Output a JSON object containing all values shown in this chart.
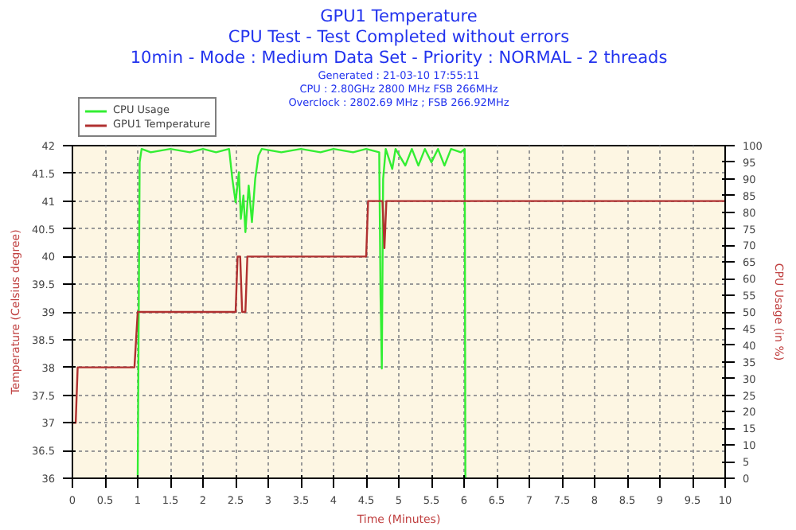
{
  "chart_data": {
    "type": "line",
    "title": "GPU1 Temperature",
    "subtitle": "CPU Test - Test Completed without errors\n10min - Mode : Medium Data Set - Priority : NORMAL - 2 threads",
    "annotations": [
      "Generated : 21-03-10 17:55:11",
      "CPU : 2.80GHz 2800 MHz FSB 266MHz",
      "Overclock : 2802.69 MHz ; FSB 266.92MHz"
    ],
    "xlabel": "Time (Minutes)",
    "ylabel": "Temperature (Celsius degree)",
    "y2label": "CPU Usage (in %)",
    "xlim": [
      0,
      10
    ],
    "xticks": [
      0,
      0.5,
      1,
      1.5,
      2,
      2.5,
      3,
      3.5,
      4,
      4.5,
      5,
      5.5,
      6,
      6.5,
      7,
      7.5,
      8,
      8.5,
      9,
      9.5,
      10
    ],
    "ylim": [
      36,
      42
    ],
    "yticks": [
      36,
      36.5,
      37,
      37.5,
      38,
      38.5,
      39,
      39.5,
      40,
      40.5,
      41,
      41.5,
      42
    ],
    "y2lim": [
      0,
      100
    ],
    "y2ticks": [
      0,
      5,
      10,
      15,
      20,
      25,
      30,
      35,
      40,
      45,
      50,
      55,
      60,
      65,
      70,
      75,
      80,
      85,
      90,
      95,
      100
    ],
    "grid": true,
    "legend": "top left",
    "line_style": "solid",
    "series": [
      {
        "name": "CPU Usage",
        "color": "#33ee33",
        "axis": "y2",
        "x": [
          1.0,
          1.03,
          1.06,
          1.2,
          1.5,
          1.8,
          2.0,
          2.2,
          2.4,
          2.45,
          2.5,
          2.55,
          2.58,
          2.62,
          2.65,
          2.7,
          2.75,
          2.8,
          2.85,
          2.9,
          3.2,
          3.5,
          3.8,
          4.0,
          4.3,
          4.5,
          4.7,
          4.72,
          4.74,
          4.76,
          4.8,
          4.9,
          4.95,
          5.1,
          5.2,
          5.3,
          5.4,
          5.5,
          5.6,
          5.7,
          5.8,
          5.95,
          6.01,
          6.02
        ],
        "values": [
          0,
          95,
          99,
          98,
          99,
          98,
          99,
          98,
          99,
          90,
          83,
          92,
          78,
          85,
          74,
          88,
          77,
          90,
          97,
          99,
          98,
          99,
          98,
          99,
          98,
          99,
          98,
          55,
          33,
          90,
          99,
          93,
          99,
          94,
          99,
          94,
          99,
          95,
          99,
          94,
          99,
          98,
          99,
          0
        ]
      },
      {
        "name": "GPU1 Temperature",
        "color": "#b03030",
        "x": [
          0,
          0.05,
          0.08,
          0.95,
          1.0,
          2.5,
          2.53,
          2.57,
          2.6,
          2.65,
          2.68,
          4.5,
          4.53,
          4.75,
          4.78,
          4.81,
          10
        ],
        "values": [
          37,
          37,
          38,
          38,
          39,
          39,
          40,
          40,
          39,
          39,
          40,
          40,
          41,
          41,
          40.15,
          41,
          41
        ]
      }
    ]
  }
}
